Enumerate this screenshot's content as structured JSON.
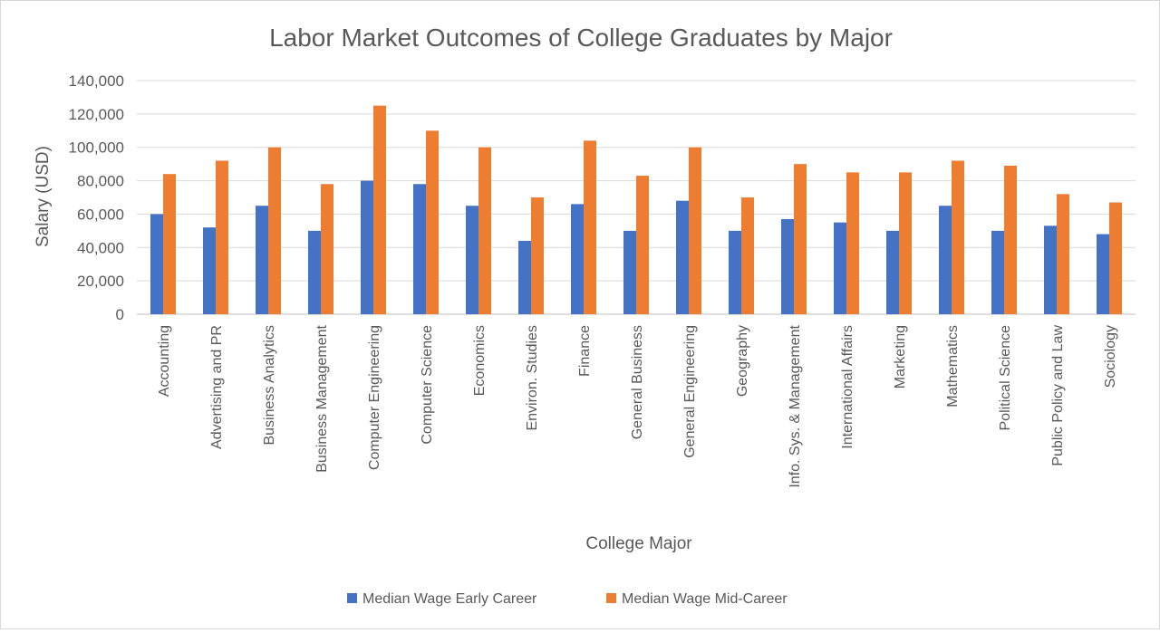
{
  "chart_data": {
    "type": "bar",
    "title": "Labor Market Outcomes of College Graduates by Major",
    "xlabel": "College Major",
    "ylabel": "Salary (USD)",
    "ylim": [
      0,
      140000
    ],
    "yticks": [
      0,
      20000,
      40000,
      60000,
      80000,
      100000,
      120000,
      140000
    ],
    "ytick_labels": [
      "0",
      "20,000",
      "40,000",
      "60,000",
      "80,000",
      "100,000",
      "120,000",
      "140,000"
    ],
    "grid": true,
    "legend_position": "bottom",
    "categories": [
      "Accounting",
      "Advertising and PR",
      "Business Analytics",
      "Business Management",
      "Computer Engineering",
      "Computer Science",
      "Economics",
      "Environ. Studies",
      "Finance",
      "General Business",
      "General Engineering",
      "Geography",
      "Info. Sys. & Management",
      "International Affairs",
      "Marketing",
      "Mathematics",
      "Political Science",
      "Public Policy and Law",
      "Sociology"
    ],
    "series": [
      {
        "name": "Median Wage Early Career",
        "color": "#4472c4",
        "values": [
          60000,
          52000,
          65000,
          50000,
          80000,
          78000,
          65000,
          44000,
          66000,
          50000,
          68000,
          50000,
          57000,
          55000,
          50000,
          65000,
          50000,
          53000,
          48000
        ]
      },
      {
        "name": "Median Wage Mid-Career",
        "color": "#ed7d31",
        "values": [
          84000,
          92000,
          100000,
          78000,
          125000,
          110000,
          100000,
          70000,
          104000,
          83000,
          100000,
          70000,
          90000,
          85000,
          85000,
          92000,
          89000,
          72000,
          67000
        ]
      }
    ]
  }
}
